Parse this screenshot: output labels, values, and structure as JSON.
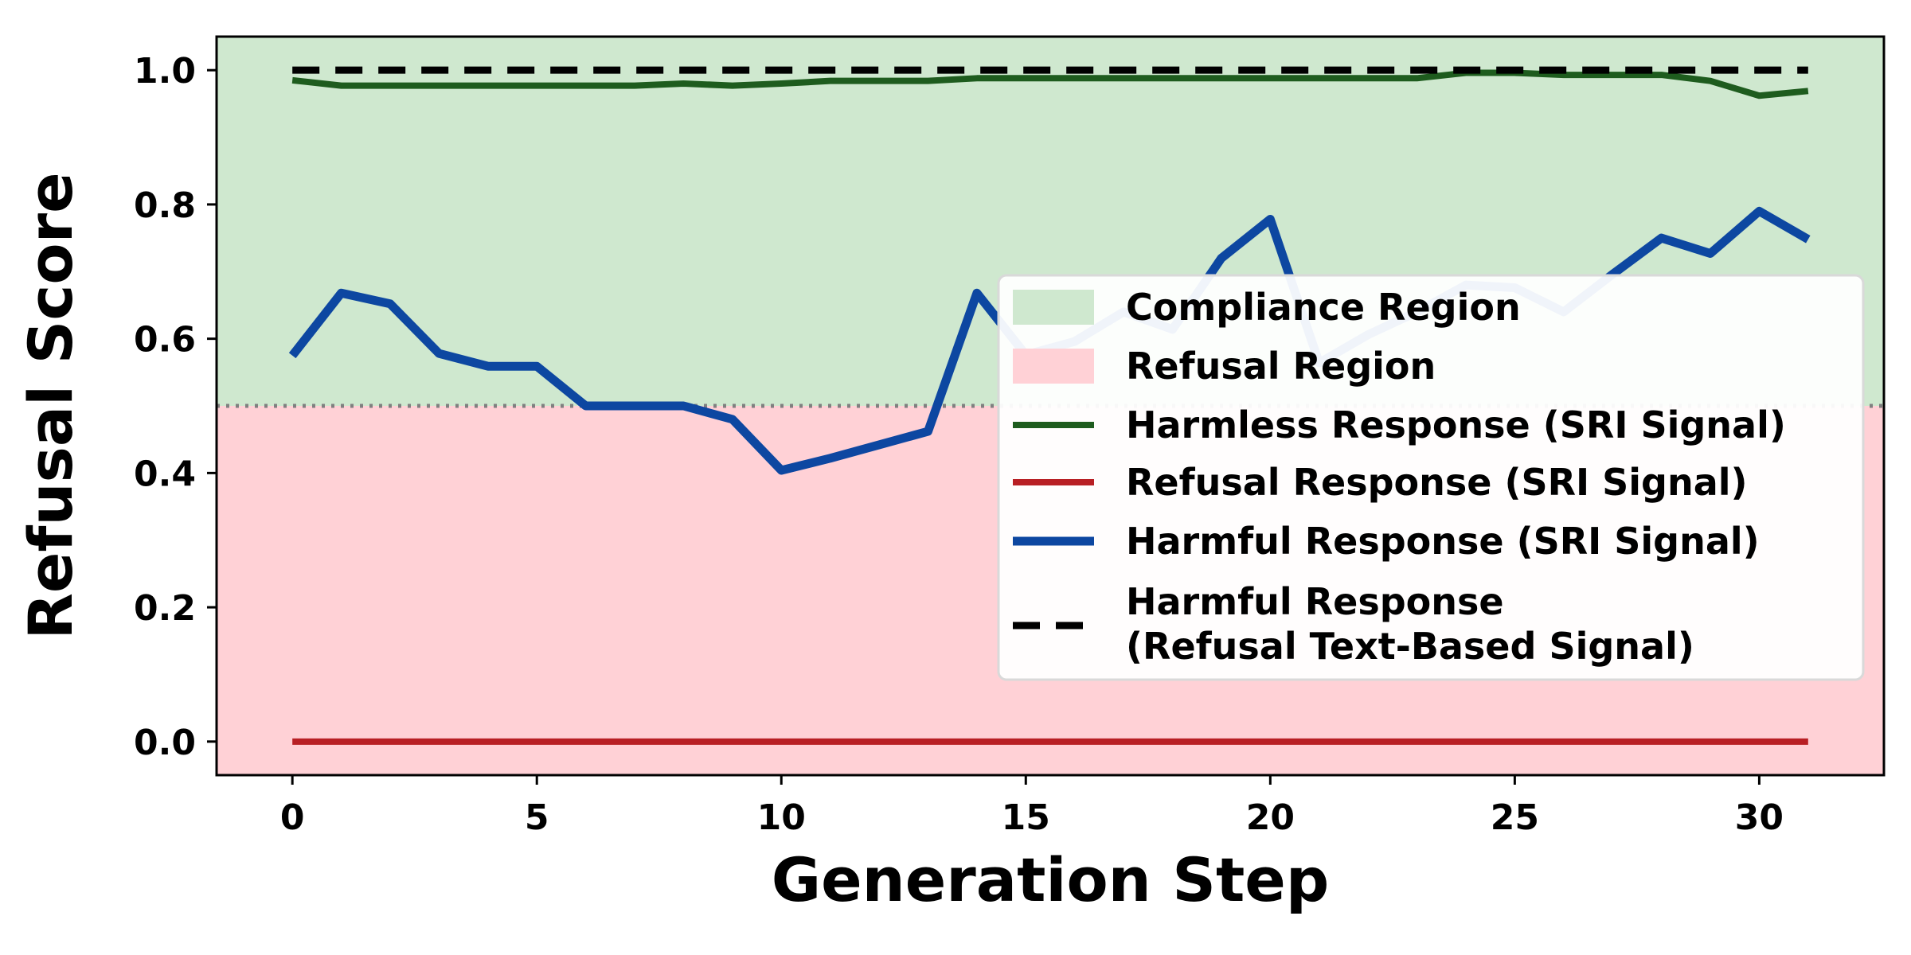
{
  "chart_data": {
    "type": "line",
    "title": "",
    "xlabel": "Generation Step",
    "ylabel": "Refusal Score",
    "xlim": [
      -1.55,
      32.55
    ],
    "ylim": [
      -0.05,
      1.05
    ],
    "xticks": [
      0,
      5,
      10,
      15,
      20,
      25,
      30
    ],
    "yticks": [
      0.0,
      0.2,
      0.4,
      0.6,
      0.8,
      1.0
    ],
    "xtick_labels": [
      "0",
      "5",
      "10",
      "15",
      "20",
      "25",
      "30"
    ],
    "ytick_labels": [
      "0.0",
      "0.2",
      "0.4",
      "0.6",
      "0.8",
      "1.0"
    ],
    "threshold": 0.5,
    "grid": false,
    "legend_position": "center-right",
    "regions": [
      {
        "name": "Compliance Region",
        "from": 0.5,
        "to": 1.05,
        "color": "#cfe8cf"
      },
      {
        "name": "Refusal Region",
        "from": -0.05,
        "to": 0.5,
        "color": "#ffd1d6"
      }
    ],
    "x": [
      0,
      1,
      2,
      3,
      4,
      5,
      6,
      7,
      8,
      9,
      10,
      11,
      12,
      13,
      14,
      15,
      16,
      17,
      18,
      19,
      20,
      21,
      22,
      23,
      24,
      25,
      26,
      27,
      28,
      29,
      30,
      31
    ],
    "series": [
      {
        "name": "Harmless Response (SRI Signal)",
        "color": "#1e5c1e",
        "style": "solid",
        "values": [
          0.985,
          0.977,
          0.977,
          0.977,
          0.977,
          0.977,
          0.977,
          0.977,
          0.98,
          0.977,
          0.98,
          0.984,
          0.984,
          0.984,
          0.988,
          0.988,
          0.988,
          0.988,
          0.988,
          0.988,
          0.988,
          0.988,
          0.988,
          0.988,
          0.996,
          0.996,
          0.993,
          0.993,
          0.993,
          0.984,
          0.962,
          0.969
        ]
      },
      {
        "name": "Refusal Response (SRI Signal)",
        "color": "#b81f24",
        "style": "solid",
        "values": [
          0,
          0,
          0,
          0,
          0,
          0,
          0,
          0,
          0,
          0,
          0,
          0,
          0,
          0,
          0,
          0,
          0,
          0,
          0,
          0,
          0,
          0,
          0,
          0,
          0,
          0,
          0,
          0,
          0,
          0,
          0,
          0
        ]
      },
      {
        "name": "Harmful Response (SRI Signal)",
        "color": "#0d47a1",
        "style": "solid",
        "values": [
          0.575,
          0.668,
          0.652,
          0.578,
          0.559,
          0.559,
          0.5,
          0.5,
          0.5,
          0.48,
          0.404,
          0.422,
          0.442,
          0.462,
          0.668,
          0.576,
          0.596,
          0.64,
          0.614,
          0.72,
          0.778,
          0.564,
          0.606,
          0.64,
          0.68,
          0.676,
          0.64,
          0.696,
          0.75,
          0.727,
          0.79,
          0.748
        ]
      },
      {
        "name": "Harmful Response\n(Refusal Text-Based Signal)",
        "color": "#000000",
        "style": "dashed",
        "values": [
          1,
          1,
          1,
          1,
          1,
          1,
          1,
          1,
          1,
          1,
          1,
          1,
          1,
          1,
          1,
          1,
          1,
          1,
          1,
          1,
          1,
          1,
          1,
          1,
          1,
          1,
          1,
          1,
          1,
          1,
          1,
          1
        ]
      }
    ]
  }
}
